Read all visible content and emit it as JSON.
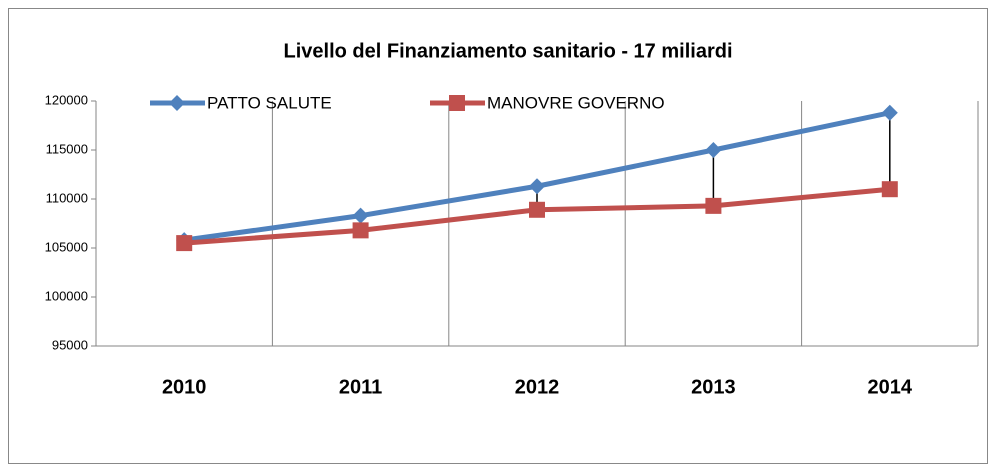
{
  "chart_data": {
    "type": "line",
    "title": "Livello del Finanziamento sanitario - 17 miliardi",
    "categories": [
      "2010",
      "2011",
      "2012",
      "2013",
      "2014"
    ],
    "series": [
      {
        "name": "PATTO SALUTE",
        "color": "#4f81bd",
        "marker": "diamond",
        "values": [
          105800,
          108300,
          111300,
          115000,
          118800
        ]
      },
      {
        "name": "MANOVRE GOVERNO",
        "color": "#c0504d",
        "marker": "square",
        "values": [
          105500,
          106800,
          108900,
          109300,
          111000
        ]
      }
    ],
    "ylim": [
      95000,
      120000
    ],
    "yticks": [
      95000,
      100000,
      105000,
      110000,
      115000,
      120000
    ],
    "grid": "vertical",
    "high_low_lines": true,
    "legend": "top"
  }
}
